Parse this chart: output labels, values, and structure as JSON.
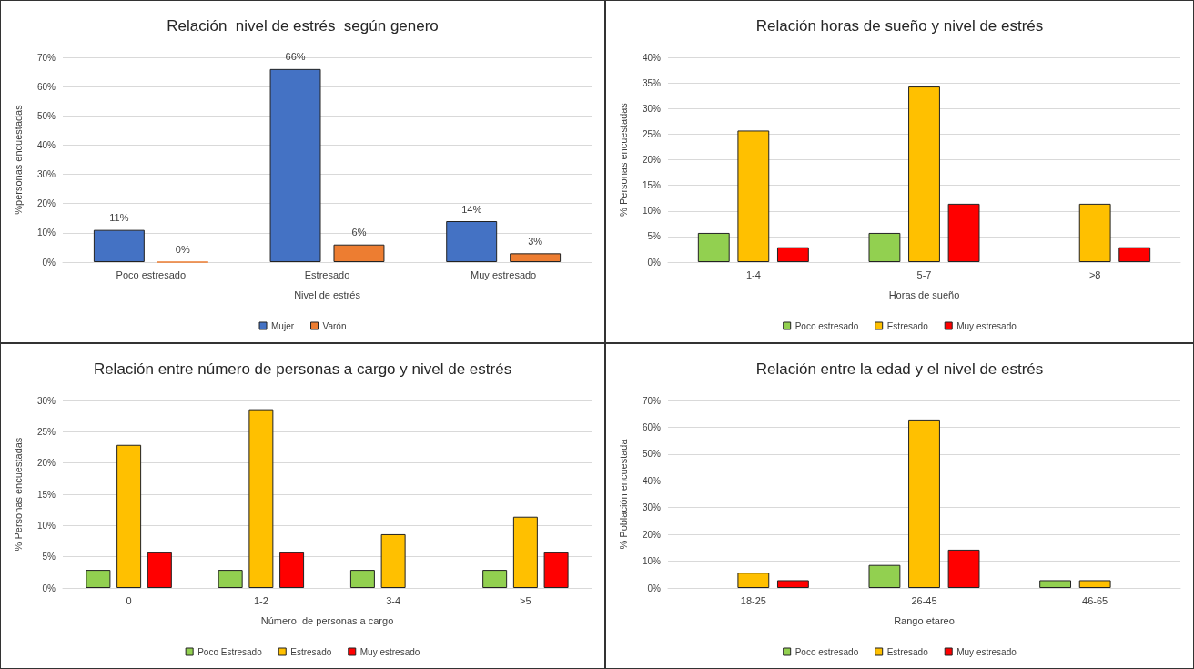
{
  "chart_data": [
    {
      "type": "bar",
      "title": "Relación  nivel de estrés  según genero",
      "xlabel": "Nivel de estrés",
      "ylabel": "%personas encuestadas",
      "categories": [
        "Poco estresado",
        "Estresado",
        "Muy estresado"
      ],
      "series": [
        {
          "name": "Mujer",
          "color": "#4472c4",
          "values": [
            11,
            66,
            14
          ],
          "value_labels": [
            "11%",
            "66%",
            "14%"
          ]
        },
        {
          "name": "Varón",
          "color": "#ed7d31",
          "values": [
            0,
            6,
            3
          ],
          "value_labels": [
            "0%",
            "6%",
            "3%"
          ]
        }
      ],
      "ylim": [
        0,
        70
      ],
      "yticks": [
        {
          "value": 0,
          "label": "0%"
        },
        {
          "value": 10,
          "label": "10%"
        },
        {
          "value": 20,
          "label": "20%"
        },
        {
          "value": 30,
          "label": "30%"
        },
        {
          "value": 40,
          "label": "40%"
        },
        {
          "value": 50,
          "label": "50%"
        },
        {
          "value": 60,
          "label": "60%"
        },
        {
          "value": 70,
          "label": "70%"
        }
      ],
      "grid": "y",
      "legend": "bottom"
    },
    {
      "type": "bar",
      "title": "Relación horas de sueño y nivel de estrés",
      "xlabel": "Horas de sueño",
      "ylabel": "% Personas encuestadas",
      "categories": [
        "1-4",
        "5-7",
        ">8"
      ],
      "series": [
        {
          "name": "Poco estresado",
          "color": "#92d050",
          "values": [
            5.7,
            5.7,
            null
          ]
        },
        {
          "name": "Estresado",
          "color": "#ffc000",
          "values": [
            25.7,
            34.3,
            11.4
          ]
        },
        {
          "name": "Muy estresado",
          "color": "#ff0000",
          "values": [
            2.9,
            11.4,
            2.9
          ]
        }
      ],
      "ylim": [
        0,
        40
      ],
      "yticks": [
        {
          "value": 0,
          "label": "0%"
        },
        {
          "value": 5,
          "label": "5%"
        },
        {
          "value": 10,
          "label": "10%"
        },
        {
          "value": 15,
          "label": "15%"
        },
        {
          "value": 20,
          "label": "20%"
        },
        {
          "value": 25,
          "label": "25%"
        },
        {
          "value": 30,
          "label": "30%"
        },
        {
          "value": 35,
          "label": "35%"
        },
        {
          "value": 40,
          "label": "40%"
        }
      ],
      "grid": "y",
      "legend": "bottom"
    },
    {
      "type": "bar",
      "title": "Relación entre número de personas a cargo y nivel de estrés",
      "xlabel": "Número  de personas a cargo",
      "ylabel": "% Personas encuestadas",
      "categories": [
        "0",
        "1-2",
        "3-4",
        ">5"
      ],
      "series": [
        {
          "name": "Poco Estresado",
          "color": "#92d050",
          "values": [
            2.9,
            2.9,
            2.9,
            2.9
          ]
        },
        {
          "name": "Estresado",
          "color": "#ffc000",
          "values": [
            22.9,
            28.6,
            8.6,
            11.4
          ]
        },
        {
          "name": "Muy estresado",
          "color": "#ff0000",
          "values": [
            5.7,
            5.7,
            null,
            5.7
          ]
        }
      ],
      "ylim": [
        0,
        30
      ],
      "yticks": [
        {
          "value": 0,
          "label": "0%"
        },
        {
          "value": 5,
          "label": "5%"
        },
        {
          "value": 10,
          "label": "10%"
        },
        {
          "value": 15,
          "label": "15%"
        },
        {
          "value": 20,
          "label": "20%"
        },
        {
          "value": 25,
          "label": "25%"
        },
        {
          "value": 30,
          "label": "30%"
        }
      ],
      "grid": "y",
      "legend": "bottom"
    },
    {
      "type": "bar",
      "title": "Relación entre la edad y el nivel de estrés",
      "xlabel": "Rango etareo",
      "ylabel": "% Población encuestada",
      "categories": [
        "18-25",
        "26-45",
        "46-65"
      ],
      "series": [
        {
          "name": "Poco estresado",
          "color": "#92d050",
          "values": [
            null,
            8.6,
            2.9
          ]
        },
        {
          "name": "Estresado",
          "color": "#ffc000",
          "values": [
            5.7,
            62.9,
            2.9
          ]
        },
        {
          "name": "Muy estresado",
          "color": "#ff0000",
          "values": [
            2.9,
            14.3,
            null
          ]
        }
      ],
      "ylim": [
        0,
        70
      ],
      "yticks": [
        {
          "value": 0,
          "label": "0%"
        },
        {
          "value": 10,
          "label": "10%"
        },
        {
          "value": 20,
          "label": "20%"
        },
        {
          "value": 30,
          "label": "30%"
        },
        {
          "value": 40,
          "label": "40%"
        },
        {
          "value": 50,
          "label": "50%"
        },
        {
          "value": 60,
          "label": "60%"
        },
        {
          "value": 70,
          "label": "70%"
        }
      ],
      "grid": "y",
      "legend": "bottom"
    }
  ]
}
